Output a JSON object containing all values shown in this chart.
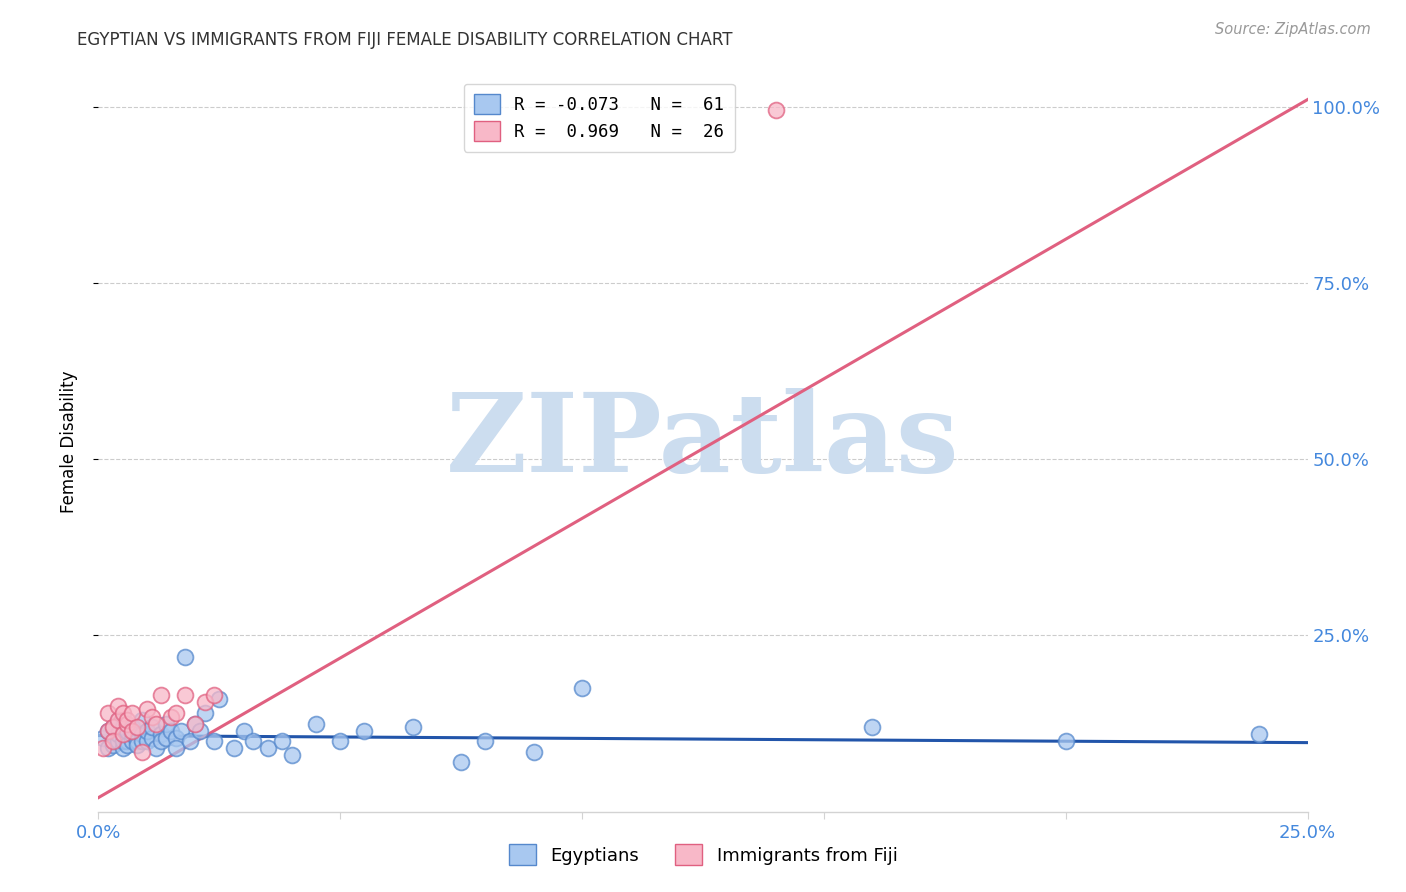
{
  "title": "EGYPTIAN VS IMMIGRANTS FROM FIJI FEMALE DISABILITY CORRELATION CHART",
  "source": "Source: ZipAtlas.com",
  "ylabel": "Female Disability",
  "xlim": [
    0.0,
    0.25
  ],
  "ylim": [
    0.0,
    1.05
  ],
  "xticks": [
    0.0,
    0.05,
    0.1,
    0.15,
    0.2,
    0.25
  ],
  "xtick_labels": [
    "0.0%",
    "",
    "",
    "",
    "",
    "25.0%"
  ],
  "yticks": [
    0.25,
    0.5,
    0.75,
    1.0
  ],
  "ytick_labels": [
    "25.0%",
    "50.0%",
    "75.0%",
    "100.0%"
  ],
  "blue_color": "#a8c8f0",
  "pink_color": "#f8b8c8",
  "blue_edge_color": "#5588cc",
  "pink_edge_color": "#e06080",
  "blue_line_color": "#2255aa",
  "pink_line_color": "#e06080",
  "legend_line1": "R = -0.073   N =  61",
  "legend_line2": "R =  0.969   N =  26",
  "watermark_text": "ZIPatlas",
  "watermark_color": "#ccddef",
  "grid_color": "#cccccc",
  "axis_label_color": "#4488dd",
  "title_color": "#333333",
  "blue_x": [
    0.001,
    0.002,
    0.002,
    0.003,
    0.003,
    0.003,
    0.004,
    0.004,
    0.004,
    0.005,
    0.005,
    0.005,
    0.005,
    0.006,
    0.006,
    0.006,
    0.007,
    0.007,
    0.007,
    0.008,
    0.008,
    0.009,
    0.009,
    0.009,
    0.01,
    0.01,
    0.011,
    0.011,
    0.012,
    0.013,
    0.013,
    0.014,
    0.014,
    0.015,
    0.016,
    0.016,
    0.017,
    0.018,
    0.019,
    0.02,
    0.021,
    0.022,
    0.024,
    0.025,
    0.028,
    0.03,
    0.032,
    0.035,
    0.038,
    0.04,
    0.045,
    0.05,
    0.055,
    0.065,
    0.075,
    0.08,
    0.09,
    0.1,
    0.16,
    0.2,
    0.24
  ],
  "blue_y": [
    0.105,
    0.09,
    0.115,
    0.1,
    0.095,
    0.12,
    0.1,
    0.11,
    0.13,
    0.09,
    0.1,
    0.11,
    0.12,
    0.1,
    0.095,
    0.115,
    0.1,
    0.12,
    0.11,
    0.1,
    0.095,
    0.11,
    0.1,
    0.13,
    0.1,
    0.115,
    0.105,
    0.12,
    0.09,
    0.11,
    0.1,
    0.105,
    0.125,
    0.115,
    0.105,
    0.09,
    0.115,
    0.22,
    0.1,
    0.125,
    0.115,
    0.14,
    0.1,
    0.16,
    0.09,
    0.115,
    0.1,
    0.09,
    0.1,
    0.08,
    0.125,
    0.1,
    0.115,
    0.12,
    0.07,
    0.1,
    0.085,
    0.175,
    0.12,
    0.1,
    0.11
  ],
  "pink_x": [
    0.001,
    0.002,
    0.002,
    0.003,
    0.003,
    0.004,
    0.004,
    0.005,
    0.005,
    0.006,
    0.006,
    0.007,
    0.007,
    0.008,
    0.009,
    0.01,
    0.011,
    0.012,
    0.013,
    0.015,
    0.016,
    0.018,
    0.02,
    0.022,
    0.024,
    0.14
  ],
  "pink_y": [
    0.09,
    0.115,
    0.14,
    0.12,
    0.1,
    0.13,
    0.15,
    0.11,
    0.14,
    0.125,
    0.13,
    0.14,
    0.115,
    0.12,
    0.085,
    0.145,
    0.135,
    0.125,
    0.165,
    0.135,
    0.14,
    0.165,
    0.125,
    0.155,
    0.165,
    0.995
  ],
  "blue_trend_x": [
    0.0,
    0.25
  ],
  "blue_trend_y": [
    0.108,
    0.098
  ],
  "pink_trend_x": [
    0.0,
    0.25
  ],
  "pink_trend_y": [
    0.02,
    1.01
  ]
}
